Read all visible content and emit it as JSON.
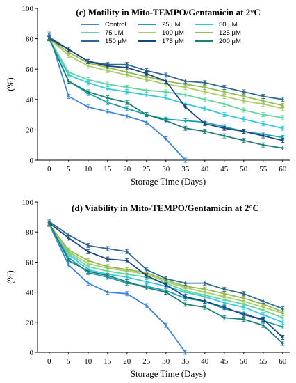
{
  "chart_data": [
    {
      "type": "line",
      "title": "(c) Motility in Mito-TEMPO/Gentamicin at 2°C",
      "xlabel": "Storage Time (Days)",
      "ylabel": "(%)",
      "xlim": [
        -3,
        62
      ],
      "ylim": [
        0,
        100
      ],
      "yticks": [
        "0",
        "20",
        "40",
        "60",
        "80",
        "100"
      ],
      "x": [
        0,
        5,
        10,
        15,
        20,
        25,
        30,
        35,
        40,
        45,
        50,
        55,
        60
      ],
      "xticks": [
        "0",
        "5",
        "10",
        "15",
        "20",
        "25",
        "30",
        "35",
        "40",
        "45",
        "50",
        "55",
        "60"
      ],
      "legend_position": "top",
      "series": [
        {
          "name": "Control",
          "color": "#3d86d6",
          "values": [
            83,
            42,
            35,
            32,
            29,
            25,
            14,
            0,
            null,
            null,
            null,
            null,
            null
          ]
        },
        {
          "name": "25 μM",
          "color": "#1ba0b3",
          "values": [
            80,
            52,
            44,
            38,
            34,
            30,
            27,
            26,
            25,
            22,
            19,
            17,
            15
          ]
        },
        {
          "name": "50 μM",
          "color": "#33c9e0",
          "values": [
            80,
            56,
            51,
            47,
            45,
            43,
            41,
            37,
            34,
            30,
            27,
            24,
            21
          ]
        },
        {
          "name": "75 μM",
          "color": "#64d3a2",
          "values": [
            80,
            58,
            53,
            50,
            48,
            46,
            45,
            43,
            40,
            37,
            33,
            30,
            28
          ]
        },
        {
          "name": "100 μM",
          "color": "#a9cc6c",
          "values": [
            80,
            69,
            62,
            59,
            56,
            53,
            50,
            48,
            45,
            42,
            39,
            37,
            34
          ]
        },
        {
          "name": "125 μM",
          "color": "#93bb4e",
          "values": [
            80,
            71,
            64,
            61,
            58,
            55,
            52,
            50,
            48,
            45,
            42,
            39,
            36
          ]
        },
        {
          "name": "150 μM",
          "color": "#2e6890",
          "values": [
            81,
            73,
            65,
            63,
            63,
            59,
            56,
            52,
            51,
            48,
            45,
            42,
            40
          ]
        },
        {
          "name": "175 μM",
          "color": "#1a4680",
          "values": [
            80,
            73,
            65,
            62,
            61,
            57,
            52,
            35,
            24,
            21,
            19,
            16,
            13
          ]
        },
        {
          "name": "200 μM",
          "color": "#1f7f76",
          "values": [
            80,
            52,
            45,
            41,
            38,
            30,
            26,
            21,
            19,
            16,
            13,
            10,
            8
          ]
        }
      ]
    },
    {
      "type": "line",
      "title": "(d) Viability in Mito-TEMPO/Gentamicin at 2°C",
      "xlabel": "Storage Time (Days)",
      "ylabel": "(%)",
      "xlim": [
        -3,
        62
      ],
      "ylim": [
        0,
        100
      ],
      "yticks": [
        "0",
        "20",
        "40",
        "60",
        "80",
        "100"
      ],
      "x": [
        0,
        5,
        10,
        15,
        20,
        25,
        30,
        35,
        40,
        45,
        50,
        55,
        60
      ],
      "xticks": [
        "0",
        "5",
        "10",
        "15",
        "20",
        "25",
        "30",
        "35",
        "40",
        "45",
        "50",
        "55",
        "60"
      ],
      "series": [
        {
          "name": "Control",
          "color": "#3d86d6",
          "values": [
            85,
            58,
            46,
            40,
            39,
            31,
            18,
            0,
            null,
            null,
            null,
            null,
            null
          ]
        },
        {
          "name": "25 μM",
          "color": "#1ba0b3",
          "values": [
            85,
            63,
            53,
            50,
            46,
            44,
            41,
            36,
            34,
            29,
            26,
            21,
            17
          ]
        },
        {
          "name": "50 μM",
          "color": "#33c9e0",
          "values": [
            85,
            65,
            55,
            52,
            50,
            47,
            44,
            40,
            37,
            33,
            30,
            25,
            20
          ]
        },
        {
          "name": "75 μM",
          "color": "#64d3a2",
          "values": [
            85,
            66,
            57,
            54,
            52,
            50,
            46,
            41,
            38,
            35,
            32,
            28,
            23
          ]
        },
        {
          "name": "100 μM",
          "color": "#a9cc6c",
          "values": [
            85,
            67,
            59,
            56,
            54,
            52,
            47,
            43,
            40,
            37,
            34,
            30,
            26
          ]
        },
        {
          "name": "125 μM",
          "color": "#93bb4e",
          "values": [
            85,
            68,
            61,
            57,
            55,
            53,
            48,
            44,
            42,
            39,
            36,
            32,
            27
          ]
        },
        {
          "name": "150 μM",
          "color": "#2e6890",
          "values": [
            87,
            78,
            71,
            69,
            67,
            55,
            49,
            46,
            46,
            42,
            39,
            34,
            29
          ]
        },
        {
          "name": "175 μM",
          "color": "#1a4680",
          "values": [
            86,
            76,
            67,
            62,
            61,
            51,
            45,
            37,
            34,
            30,
            25,
            22,
            10
          ]
        },
        {
          "name": "200 μM",
          "color": "#1f7f76",
          "values": [
            86,
            61,
            54,
            51,
            47,
            43,
            40,
            32,
            30,
            23,
            22,
            18,
            6
          ]
        }
      ]
    }
  ]
}
